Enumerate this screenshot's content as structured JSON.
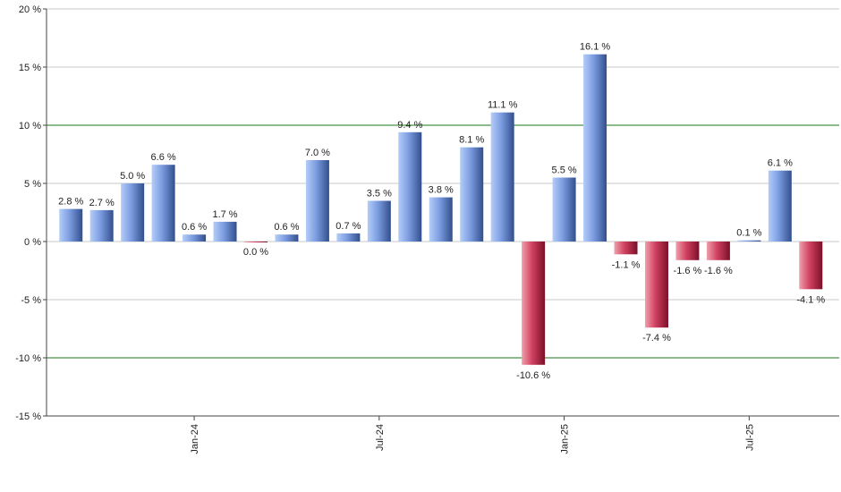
{
  "chart_data": {
    "type": "bar",
    "categories": [
      null,
      null,
      null,
      null,
      "Jan-24",
      null,
      null,
      null,
      null,
      null,
      "Jul-24",
      null,
      null,
      null,
      null,
      null,
      "Jan-25",
      null,
      null,
      null,
      null,
      null,
      "Jul-25",
      null,
      null
    ],
    "values": [
      2.8,
      2.7,
      5.0,
      6.6,
      0.6,
      1.7,
      0.0,
      0.6,
      7.0,
      0.7,
      3.5,
      9.4,
      3.8,
      8.1,
      11.1,
      -10.6,
      5.5,
      16.1,
      -1.1,
      -7.4,
      -1.6,
      -1.6,
      0.1,
      6.1,
      -4.1
    ],
    "value_labels": [
      "2.8 %",
      "2.7 %",
      "5.0 %",
      "6.6 %",
      "0.6 %",
      "1.7 %",
      "0.0 %",
      "0.6 %",
      "7.0 %",
      "0.7 %",
      "3.5 %",
      "9.4 %",
      "3.8 %",
      "8.1 %",
      "11.1 %",
      "-10.6 %",
      "5.5 %",
      "16.1 %",
      "-1.1 %",
      "-7.4 %",
      "-1.6 %",
      "-1.6 %",
      "0.1 %",
      "6.1 %",
      "-4.1 %"
    ],
    "positive_color": "#5f82cc",
    "negative_color": "#c0304c",
    "ylim": [
      -15,
      20
    ],
    "yticks": [
      {
        "value": -15,
        "label": "-15 %"
      },
      {
        "value": -10,
        "label": "-10 %"
      },
      {
        "value": -5,
        "label": "-5 %"
      },
      {
        "value": 0,
        "label": "0 %"
      },
      {
        "value": 5,
        "label": "5 %"
      },
      {
        "value": 10,
        "label": "10 %"
      },
      {
        "value": 15,
        "label": "15 %"
      },
      {
        "value": 20,
        "label": "20 %"
      }
    ],
    "grid": true,
    "reference_lines": {
      "values": [
        -10,
        10
      ],
      "color": "#1a7a1a"
    }
  }
}
